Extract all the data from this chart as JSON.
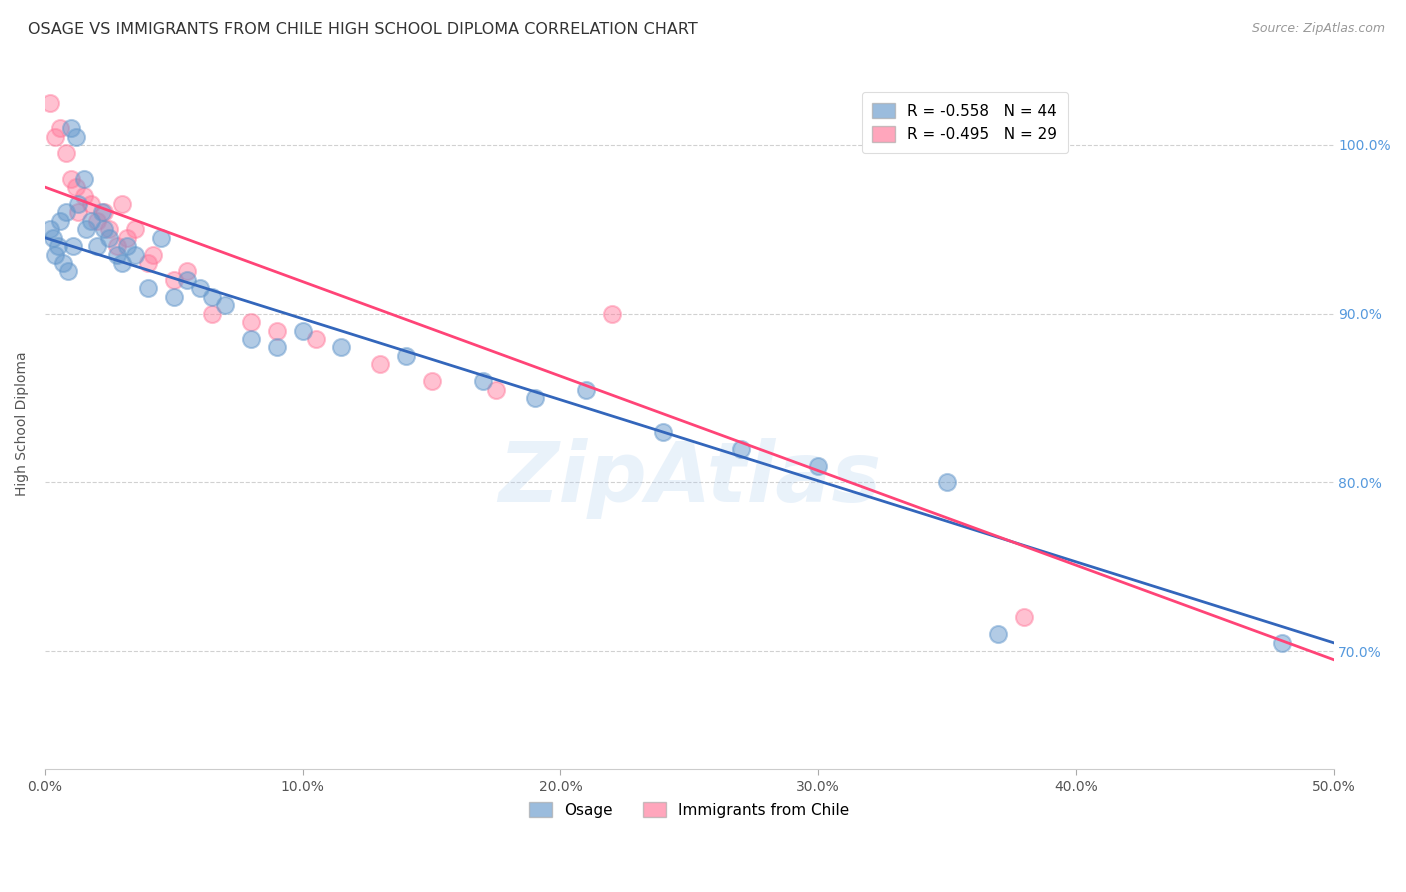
{
  "title": "OSAGE VS IMMIGRANTS FROM CHILE HIGH SCHOOL DIPLOMA CORRELATION CHART",
  "source": "Source: ZipAtlas.com",
  "ylabel": "High School Diploma",
  "xlim": [
    0.0,
    50.0
  ],
  "ylim": [
    63.0,
    104.0
  ],
  "yticks": [
    70.0,
    80.0,
    90.0,
    100.0
  ],
  "xticks": [
    0.0,
    10.0,
    20.0,
    30.0,
    40.0,
    50.0
  ],
  "blue_r": "-0.558",
  "blue_n": "44",
  "pink_r": "-0.495",
  "pink_n": "29",
  "legend_label_blue": "Osage",
  "legend_label_pink": "Immigrants from Chile",
  "blue_color": "#6699CC",
  "pink_color": "#FF7799",
  "blue_scatter_x": [
    0.2,
    0.3,
    0.4,
    0.5,
    0.6,
    0.7,
    0.8,
    0.9,
    1.0,
    1.1,
    1.2,
    1.3,
    1.5,
    1.6,
    1.8,
    2.0,
    2.2,
    2.3,
    2.5,
    2.8,
    3.0,
    3.2,
    3.5,
    4.0,
    4.5,
    5.0,
    5.5,
    6.0,
    6.5,
    7.0,
    8.0,
    9.0,
    10.0,
    11.5,
    14.0,
    17.0,
    19.0,
    21.0,
    24.0,
    27.0,
    30.0,
    35.0,
    37.0,
    48.0
  ],
  "blue_scatter_y": [
    95.0,
    94.5,
    93.5,
    94.0,
    95.5,
    93.0,
    96.0,
    92.5,
    101.0,
    94.0,
    100.5,
    96.5,
    98.0,
    95.0,
    95.5,
    94.0,
    96.0,
    95.0,
    94.5,
    93.5,
    93.0,
    94.0,
    93.5,
    91.5,
    94.5,
    91.0,
    92.0,
    91.5,
    91.0,
    90.5,
    88.5,
    88.0,
    89.0,
    88.0,
    87.5,
    86.0,
    85.0,
    85.5,
    83.0,
    82.0,
    81.0,
    80.0,
    71.0,
    70.5
  ],
  "pink_scatter_x": [
    0.2,
    0.4,
    0.6,
    0.8,
    1.0,
    1.2,
    1.5,
    1.8,
    2.0,
    2.3,
    2.5,
    2.8,
    3.0,
    3.5,
    4.0,
    5.0,
    6.5,
    8.0,
    9.0,
    10.5,
    13.0,
    15.0,
    17.5,
    3.2,
    5.5,
    22.0,
    38.0,
    1.3,
    4.2
  ],
  "pink_scatter_y": [
    102.5,
    100.5,
    101.0,
    99.5,
    98.0,
    97.5,
    97.0,
    96.5,
    95.5,
    96.0,
    95.0,
    94.0,
    96.5,
    95.0,
    93.0,
    92.0,
    90.0,
    89.5,
    89.0,
    88.5,
    87.0,
    86.0,
    85.5,
    94.5,
    92.5,
    90.0,
    72.0,
    96.0,
    93.5
  ],
  "blue_line_x": [
    0.0,
    50.0
  ],
  "blue_line_y": [
    94.5,
    70.5
  ],
  "pink_line_x": [
    0.0,
    50.0
  ],
  "pink_line_y": [
    97.5,
    69.5
  ],
  "background_color": "#ffffff",
  "grid_color": "#cccccc",
  "title_fontsize": 11.5,
  "axis_label_fontsize": 10,
  "tick_fontsize": 10,
  "legend_fontsize": 11
}
